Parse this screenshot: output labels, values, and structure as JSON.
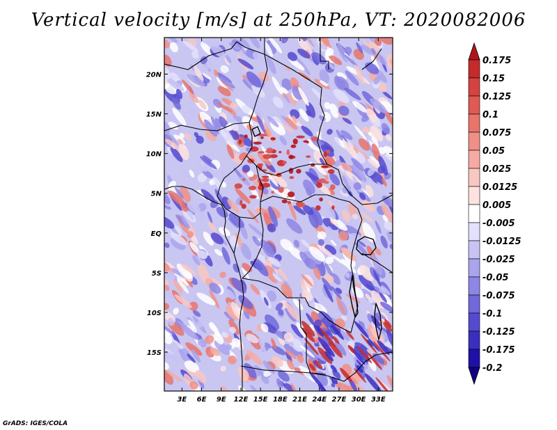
{
  "title": "Vertical velocity [m/s] at 250hPa, VT: 2020082006",
  "credit": "GrADS: IGES/COLA",
  "map": {
    "lat_labels": [
      "20N",
      "15N",
      "10N",
      "5N",
      "EQ",
      "5S",
      "10S",
      "15S"
    ],
    "lat_values": [
      20,
      15,
      10,
      5,
      0,
      -5,
      -10,
      -15
    ],
    "lon_labels": [
      "3E",
      "6E",
      "9E",
      "12E",
      "15E",
      "18E",
      "21E",
      "24E",
      "27E",
      "30E",
      "33E"
    ],
    "lon_values": [
      3,
      6,
      9,
      12,
      15,
      18,
      21,
      24,
      27,
      30,
      33
    ],
    "lon_range": [
      0.3,
      35.2
    ],
    "lat_range": [
      -19.9,
      24.6
    ]
  },
  "colorbar": {
    "labels": [
      "0.175",
      "0.15",
      "0.125",
      "0.1",
      "0.075",
      "0.05",
      "0.025",
      "0.0125",
      "0.005",
      "-0.005",
      "-0.0125",
      "-0.025",
      "-0.05",
      "-0.075",
      "-0.1",
      "-0.125",
      "-0.175",
      "-0.2"
    ],
    "colors": [
      "#b0151c",
      "#c62a2b",
      "#d4433f",
      "#de5a55",
      "#e8746c",
      "#ef8f87",
      "#f5aba4",
      "#f9c7c2",
      "#fde2df",
      "#ffffff",
      "#e3e1fb",
      "#c7c3f4",
      "#aaa4ec",
      "#8e86e4",
      "#7168db",
      "#554acf",
      "#3a2ebf",
      "#2010a8",
      "#10007f"
    ]
  }
}
